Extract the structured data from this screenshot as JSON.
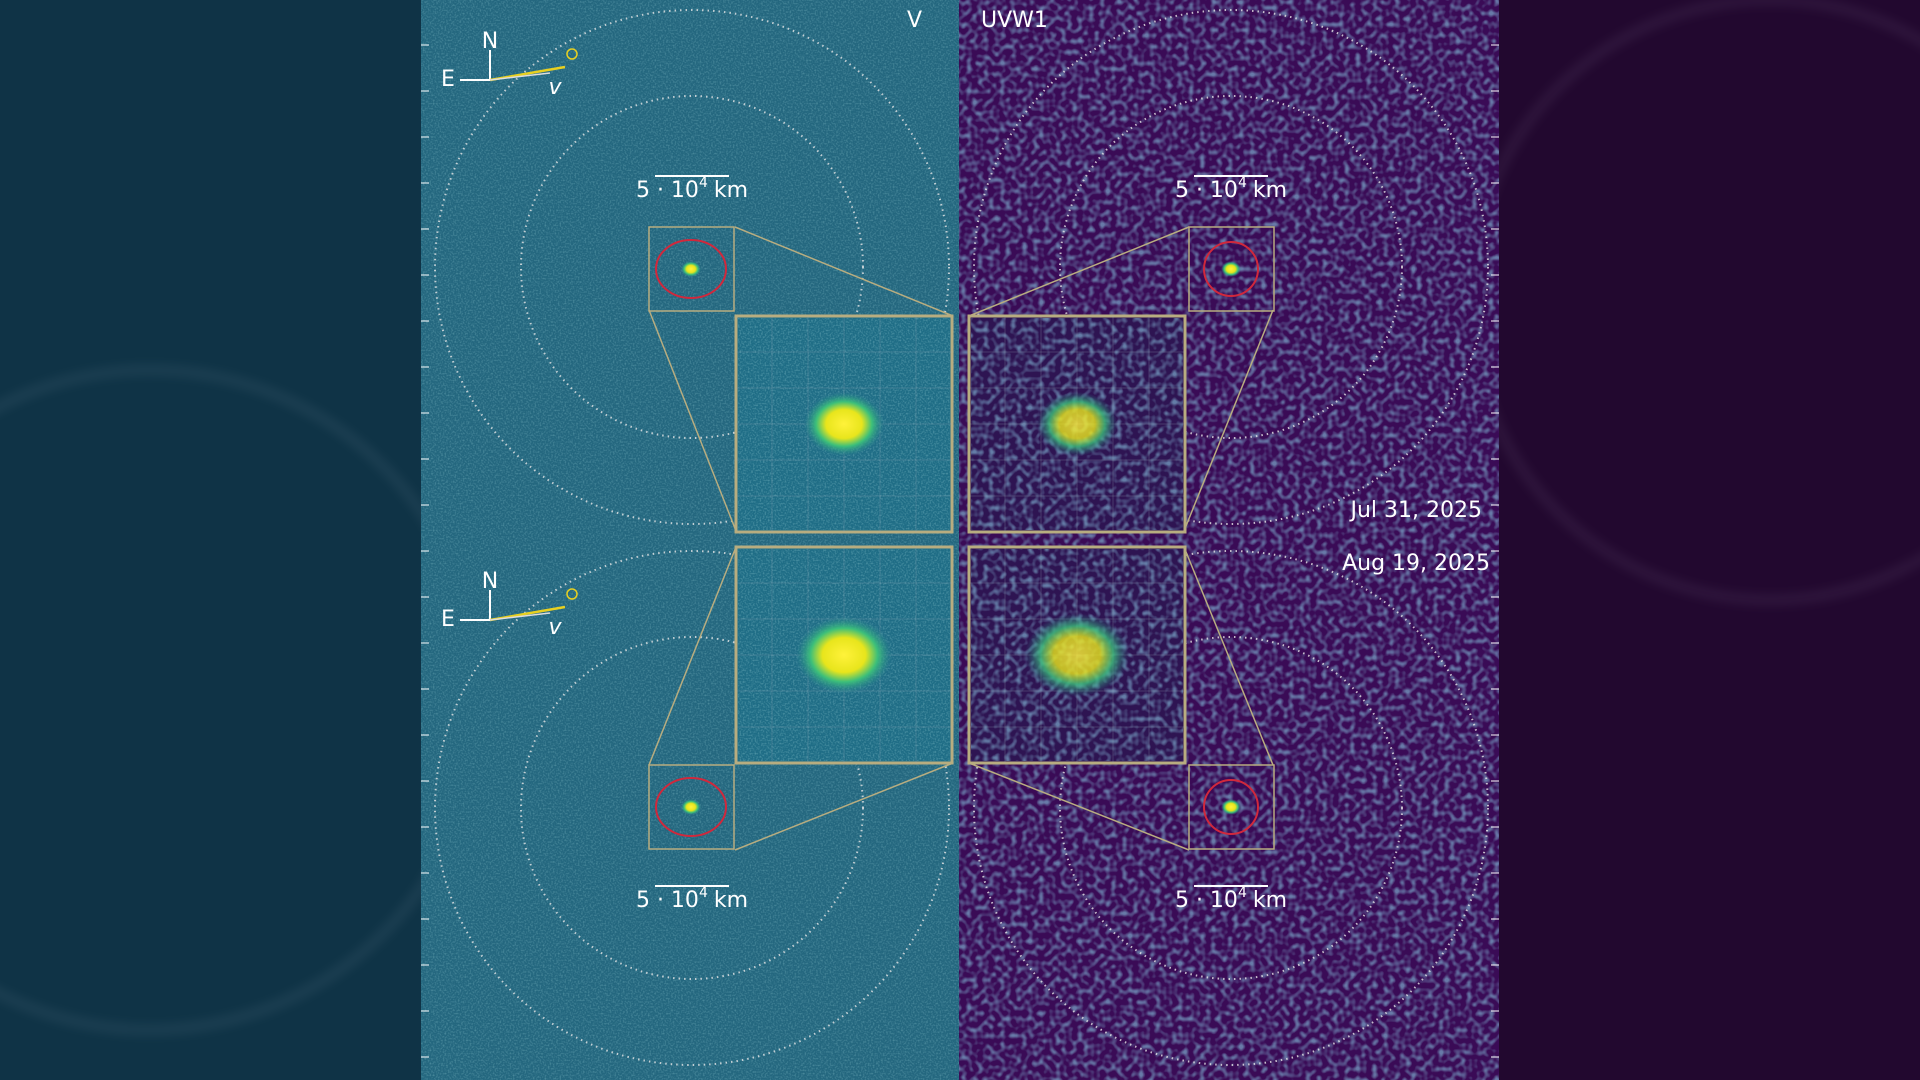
{
  "panels": {
    "left_label": "V",
    "right_label": "UVW1"
  },
  "compass": {
    "north": "N",
    "east": "E",
    "velocity": "v"
  },
  "scale_bar": {
    "base": "5 · 10",
    "exponent": "4",
    "unit": "km"
  },
  "dates": [
    "Jul 31, 2025",
    "Aug 19, 2025"
  ]
}
